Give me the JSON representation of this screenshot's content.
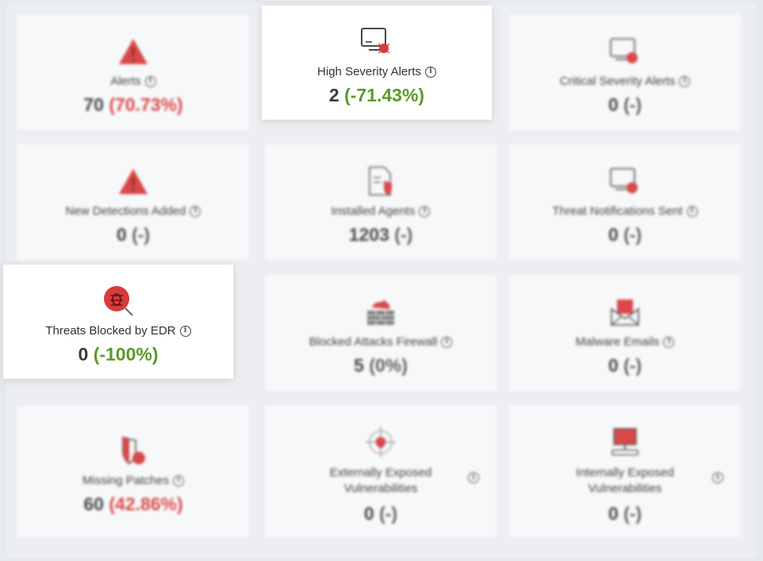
{
  "cards": [
    {
      "label": "Alerts",
      "value": "70",
      "change": "(70.73%)",
      "icon": "warning-triangle-icon"
    },
    {
      "label": "High Severity Alerts",
      "value": "2",
      "change": "(-71.43%)",
      "icon": "monitor-bug-icon"
    },
    {
      "label": "Critical Severity Alerts",
      "value": "0",
      "change": "(-)",
      "icon": "monitor-alert-icon"
    },
    {
      "label": "New Detections Added",
      "value": "0",
      "change": "(-)",
      "icon": "warning-triangle-icon"
    },
    {
      "label": "Installed Agents",
      "value": "1203",
      "change": "(-)",
      "icon": "document-shield-icon"
    },
    {
      "label": "Threat Notifications Sent",
      "value": "0",
      "change": "(-)",
      "icon": "monitor-alert-icon"
    },
    {
      "label": "Threats Blocked by EDR",
      "value": "0",
      "change": "(-100%)",
      "icon": "bug-magnifier-icon"
    },
    {
      "label": "Blocked Attacks Firewall",
      "value": "5",
      "change": "(0%)",
      "icon": "firewall-icon"
    },
    {
      "label": "Malware Emails",
      "value": "0",
      "change": "(-)",
      "icon": "email-icon"
    },
    {
      "label": "Missing Patches",
      "value": "60",
      "change": "(42.86%)",
      "icon": "shield-alert-icon"
    },
    {
      "label_line1": "Externally Exposed",
      "label_line2": "Vulnerabilities",
      "value": "0",
      "change": "(-)",
      "icon": "target-icon"
    },
    {
      "label_line1": "Internally Exposed",
      "label_line2": "Vulnerabilities",
      "value": "0",
      "change": "(-)",
      "icon": "computer-icon"
    }
  ],
  "info_glyph": "i",
  "colors": {
    "accent_red": "#d83b3b",
    "positive_green": "#5a9a2a",
    "text": "#333333"
  }
}
